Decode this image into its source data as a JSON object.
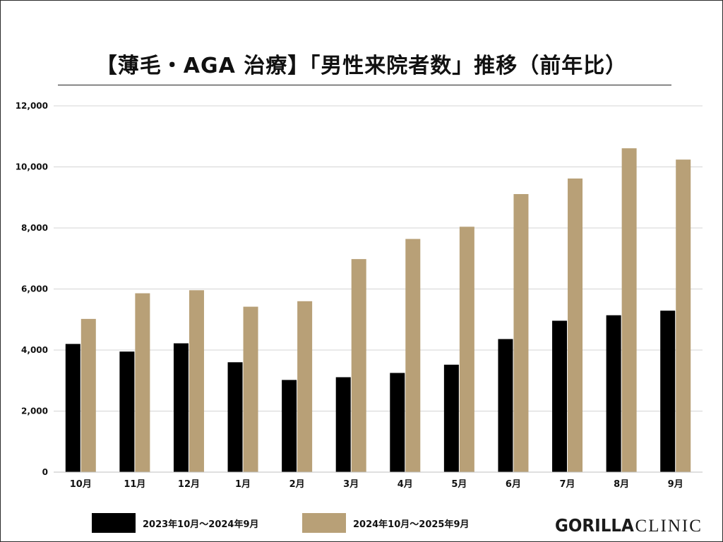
{
  "chart_data": {
    "type": "bar",
    "title": "【薄毛・AGA 治療】「男性来院者数」推移（前年比）",
    "categories": [
      "10月",
      "11月",
      "12月",
      "1月",
      "2月",
      "3月",
      "4月",
      "5月",
      "6月",
      "7月",
      "8月",
      "9月"
    ],
    "series": [
      {
        "name": "2023年10月～2024年9月",
        "color": "#000000",
        "values": [
          4200,
          3950,
          4220,
          3600,
          3020,
          3110,
          3250,
          3520,
          4360,
          4960,
          5140,
          5290
        ]
      },
      {
        "name": "2024年10月～2025年9月",
        "color": "#b8a077",
        "values": [
          5020,
          5860,
          5960,
          5420,
          5600,
          6980,
          7640,
          8040,
          9110,
          9620,
          10610,
          10240
        ]
      }
    ],
    "ylim": [
      0,
      12000
    ],
    "yticks": [
      0,
      2000,
      4000,
      6000,
      8000,
      10000,
      12000
    ],
    "ytick_labels": [
      "0",
      "2,000",
      "4,000",
      "6,000",
      "8,000",
      "10,000",
      "12,000"
    ],
    "xlabel": "",
    "ylabel": "",
    "grid": true,
    "legend_position": "bottom-left"
  },
  "logo": {
    "bold_text": "GORILLA",
    "light_text": "CLINIC"
  }
}
